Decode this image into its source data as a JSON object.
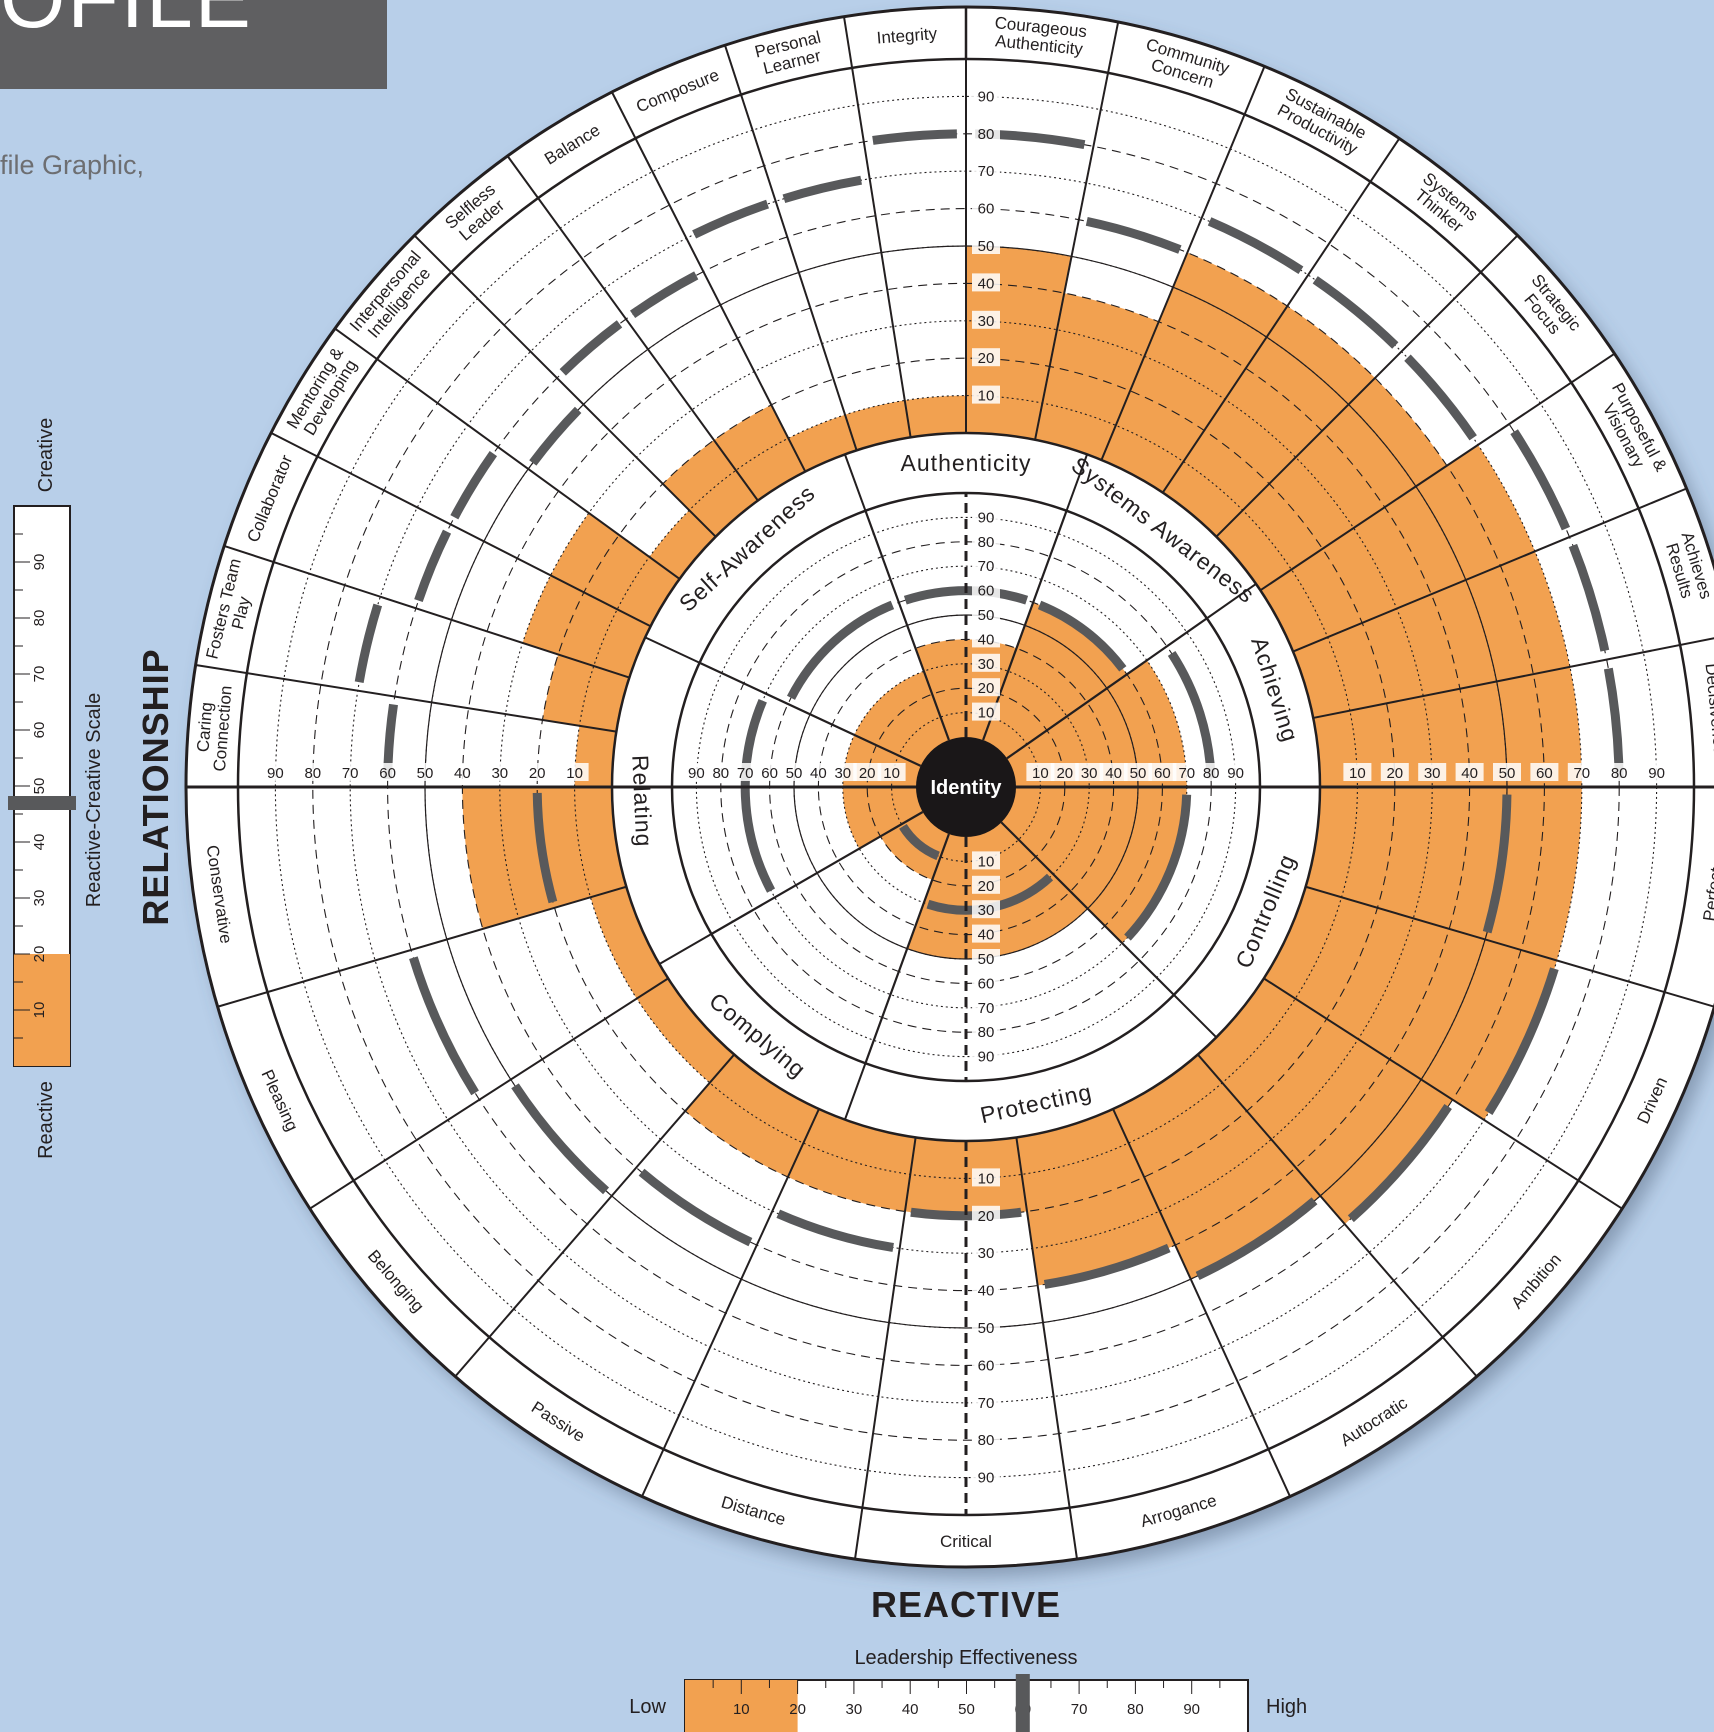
{
  "header": {
    "title_fragment": "OFILE",
    "intro_text": "file Graphic,"
  },
  "chart_data": {
    "type": "circumplex",
    "center_label": "Identity",
    "bottom_label": "REACTIVE",
    "left_label": "RELATIONSHIP",
    "inner_ring": {
      "sectors": [
        {
          "name": "Authenticity",
          "value": 40,
          "reactive": false
        },
        {
          "name": "Systems Awareness",
          "value": 60,
          "reactive": false
        },
        {
          "name": "Achieving",
          "value": 70,
          "reactive": false
        },
        {
          "name": "Controlling",
          "value": 70,
          "reactive": true
        },
        {
          "name": "Protecting",
          "value": 50,
          "reactive": true
        },
        {
          "name": "Complying",
          "value": 20,
          "reactive": true
        },
        {
          "name": "Relating",
          "value": 30,
          "reactive": false
        },
        {
          "name": "Self-Awareness",
          "value": 30,
          "reactive": false
        }
      ],
      "norm_markers": [
        {
          "from_deg": -20,
          "to_deg": 20,
          "value": 60
        },
        {
          "from_deg": 20,
          "to_deg": 55,
          "value": 60
        },
        {
          "from_deg": 55,
          "to_deg": 90,
          "value": 80
        },
        {
          "from_deg": 90,
          "to_deg": 135,
          "value": 70
        },
        {
          "from_deg": 135,
          "to_deg": 200,
          "value": 30
        },
        {
          "from_deg": 200,
          "to_deg": 240,
          "value": 10
        },
        {
          "from_deg": 240,
          "to_deg": 295,
          "value": 70
        },
        {
          "from_deg": 295,
          "to_deg": 340,
          "value": 60
        }
      ],
      "tick_labels": [
        "10",
        "20",
        "30",
        "40",
        "50",
        "60",
        "70",
        "80",
        "90"
      ]
    },
    "outer_ring": {
      "creative_dimensions": [
        {
          "name": "Courageous Authenticity",
          "value": 50,
          "norm": 80
        },
        {
          "name": "Community Concern",
          "value": 40,
          "norm": 60
        },
        {
          "name": "Sustainable Productivity",
          "value": 60,
          "norm": 70
        },
        {
          "name": "Systems Thinker",
          "value": 60,
          "norm": 70
        },
        {
          "name": "Strategic Focus",
          "value": 60,
          "norm": 70
        },
        {
          "name": "Purposeful & Visionary",
          "value": 70,
          "norm": 80
        },
        {
          "name": "Achieves Results",
          "value": 70,
          "norm": 80
        },
        {
          "name": "Decisiveness",
          "value": 70,
          "norm": 80
        },
        {
          "name": "Caring Connection",
          "value": 10,
          "norm": 60
        },
        {
          "name": "Fosters Team Play",
          "value": 20,
          "norm": 70
        },
        {
          "name": "Collaborator",
          "value": 30,
          "norm": 60
        },
        {
          "name": "Mentoring & Developing",
          "value": 30,
          "norm": 60
        },
        {
          "name": "Interpersonal Intelligence",
          "value": 10,
          "norm": 50
        },
        {
          "name": "Selfless Leader",
          "value": 20,
          "norm": 60
        },
        {
          "name": "Balance",
          "value": 20,
          "norm": 60
        },
        {
          "name": "Composure",
          "value": 10,
          "norm": 70
        },
        {
          "name": "Personal Learner",
          "value": 10,
          "norm": 70
        },
        {
          "name": "Integrity",
          "value": 10,
          "norm": 80
        }
      ],
      "reactive_dimensions": [
        {
          "name": "Perfect",
          "value": 70,
          "norm": 50
        },
        {
          "name": "Driven",
          "value": 70,
          "norm": 70
        },
        {
          "name": "Ambition",
          "value": 60,
          "norm": 60
        },
        {
          "name": "Autocratic",
          "value": 50,
          "norm": 50
        },
        {
          "name": "Arrogance",
          "value": 40,
          "norm": 40
        },
        {
          "name": "Critical",
          "value": 20,
          "norm": 20
        },
        {
          "name": "Distance",
          "value": 20,
          "norm": 30
        },
        {
          "name": "Passive",
          "value": 20,
          "norm": 40
        },
        {
          "name": "Belonging",
          "value": 10,
          "norm": 50
        },
        {
          "name": "Pleasing",
          "value": 10,
          "norm": 60
        },
        {
          "name": "Conservative",
          "value": 40,
          "norm": 20
        }
      ],
      "tick_labels": [
        "10",
        "20",
        "30",
        "40",
        "50",
        "60",
        "70",
        "80",
        "90"
      ]
    },
    "reactive_creative_scale": {
      "label": "Reactive-Creative Scale",
      "top_label": "Creative",
      "bottom_label": "Reactive",
      "value": 20,
      "marker": 50,
      "ticks": [
        "10",
        "20",
        "30",
        "40",
        "50",
        "60",
        "70",
        "80",
        "90"
      ]
    },
    "leadership_effectiveness": {
      "label": "Leadership Effectiveness",
      "low_label": "Low",
      "high_label": "High",
      "value": 20,
      "marker": 60,
      "ticks": [
        "10",
        "20",
        "30",
        "40",
        "50",
        "60",
        "70",
        "80",
        "90"
      ]
    },
    "colors": {
      "background": "#b8cfe9",
      "score_fill": "#f2a150",
      "norm_marker": "#58595b",
      "ring_line": "#231f20",
      "title_bar": "#5f5f61",
      "center": "#1a1718"
    }
  }
}
